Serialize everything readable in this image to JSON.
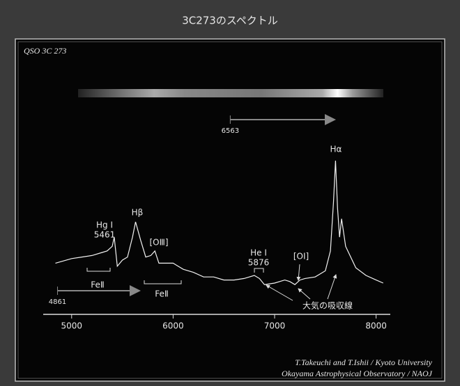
{
  "title": "3C273のスペクトル",
  "panel_label": "QSO 3C 273",
  "credits": [
    "T.Takeuchi and T.Ishii / Kyoto University",
    "Okayama Astrophysical Observatory / NAOJ"
  ],
  "chart_data": {
    "type": "line",
    "x": [
      4840,
      5000,
      5100,
      5200,
      5300,
      5350,
      5400,
      5420,
      5450,
      5500,
      5550,
      5600,
      5630,
      5680,
      5730,
      5780,
      5820,
      5860,
      5900,
      6000,
      6100,
      6200,
      6300,
      6400,
      6500,
      6600,
      6700,
      6800,
      6850,
      6900,
      7000,
      7100,
      7150,
      7200,
      7250,
      7300,
      7400,
      7500,
      7550,
      7580,
      7600,
      7620,
      7640,
      7660,
      7700,
      7800,
      7900,
      8000,
      8070
    ],
    "values": [
      28,
      31,
      32,
      33,
      35,
      36,
      39,
      45,
      26,
      30,
      32,
      45,
      55,
      43,
      32,
      33,
      36,
      28,
      28,
      28,
      24,
      22,
      19,
      19,
      17,
      17,
      18,
      20,
      18,
      14,
      15,
      17,
      16,
      14,
      17,
      18,
      19,
      23,
      36,
      68,
      95,
      64,
      45,
      57,
      39,
      25,
      20,
      17,
      15
    ],
    "color": "#f2f2f2",
    "xlim": [
      4720,
      8140
    ],
    "xticks": [
      5000,
      6000,
      7000,
      8000
    ],
    "ylim": [
      0,
      100
    ],
    "rest_wavelengths": [
      4861,
      6563
    ],
    "annotations": [
      {
        "text": "Hg Ⅰ",
        "wavelength": 5461
      },
      {
        "text": "Hβ"
      },
      {
        "text": "[OⅢ]"
      },
      {
        "text": "He Ⅰ",
        "wavelength": 5876
      },
      {
        "text": "[OⅠ]"
      },
      {
        "text": "Hα"
      },
      {
        "text": "FeⅡ"
      },
      {
        "text": "FeⅡ"
      },
      {
        "text": "大気の吸収線"
      }
    ]
  }
}
